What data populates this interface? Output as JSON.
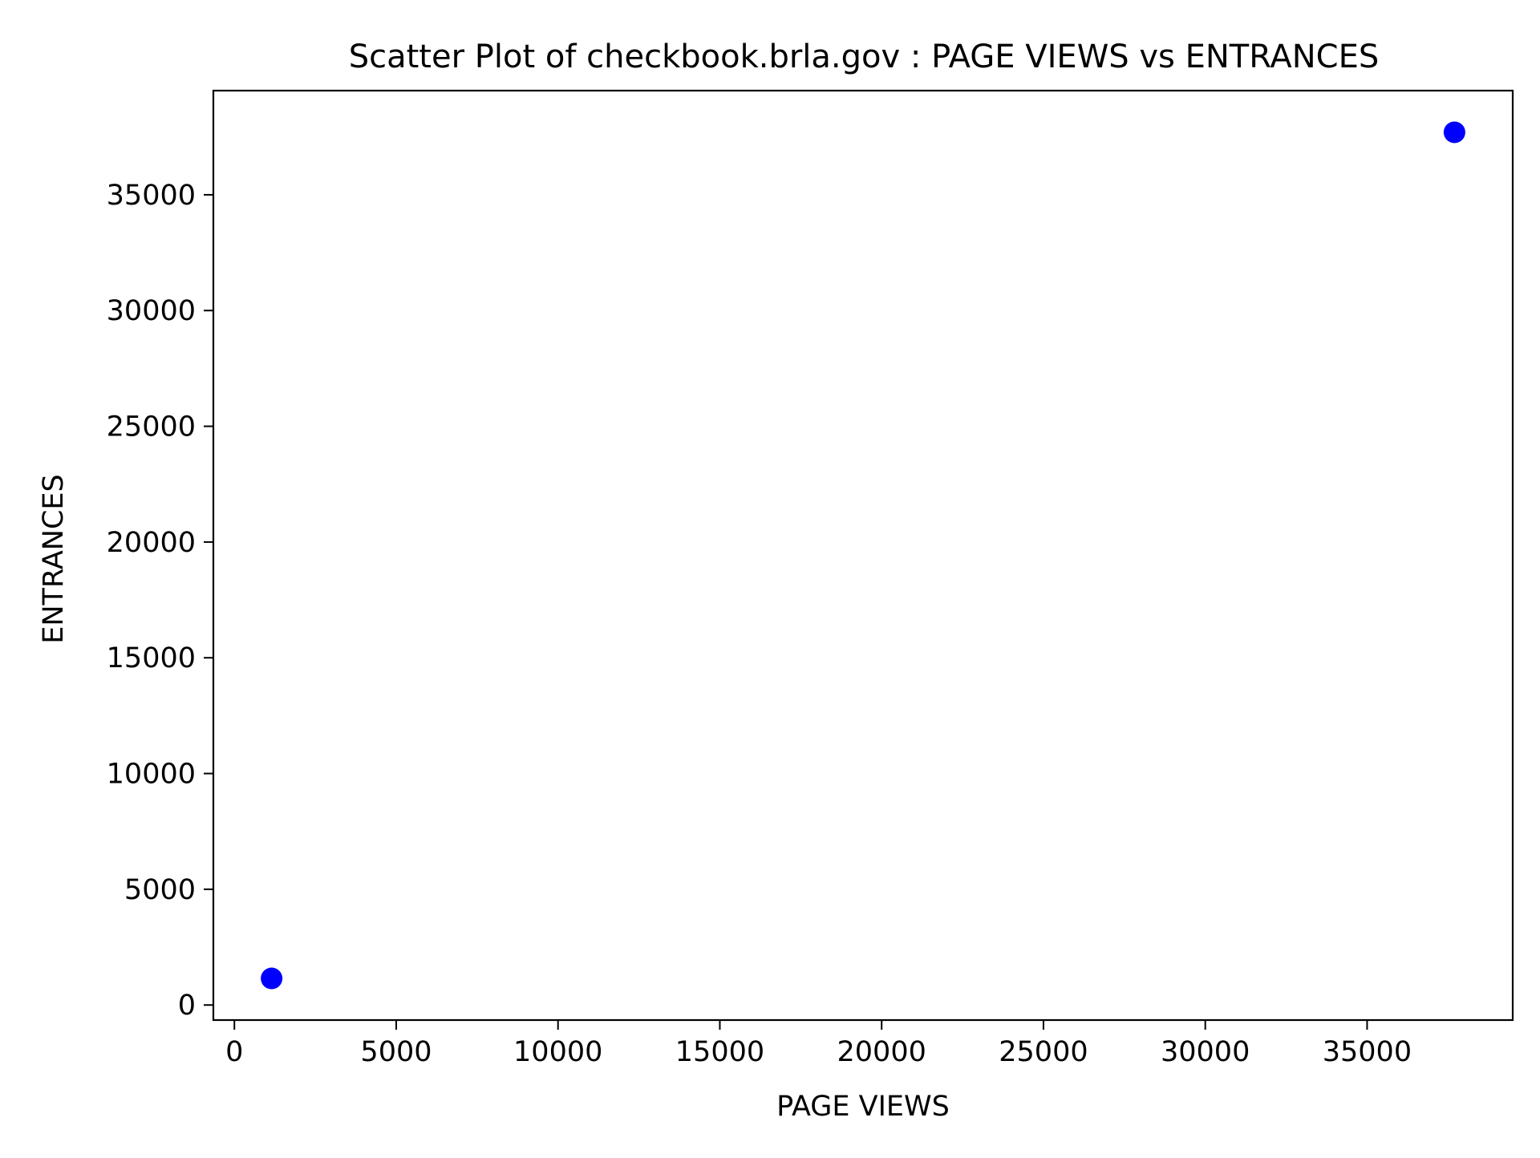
{
  "chart_data": {
    "type": "scatter",
    "title": "Scatter Plot of checkbook.brla.gov : PAGE VIEWS vs ENTRANCES",
    "xlabel": "PAGE VIEWS",
    "ylabel": "ENTRANCES",
    "xlim": [
      -650,
      39500
    ],
    "ylim": [
      -650,
      39500
    ],
    "x_ticks": [
      0,
      5000,
      10000,
      15000,
      20000,
      25000,
      30000,
      35000
    ],
    "y_ticks": [
      0,
      5000,
      10000,
      15000,
      20000,
      25000,
      30000,
      35000
    ],
    "grid": false,
    "legend": "none",
    "marker_color": "#0000ff",
    "points": [
      {
        "x": 1150,
        "y": 1150
      },
      {
        "x": 37700,
        "y": 37700
      }
    ]
  }
}
